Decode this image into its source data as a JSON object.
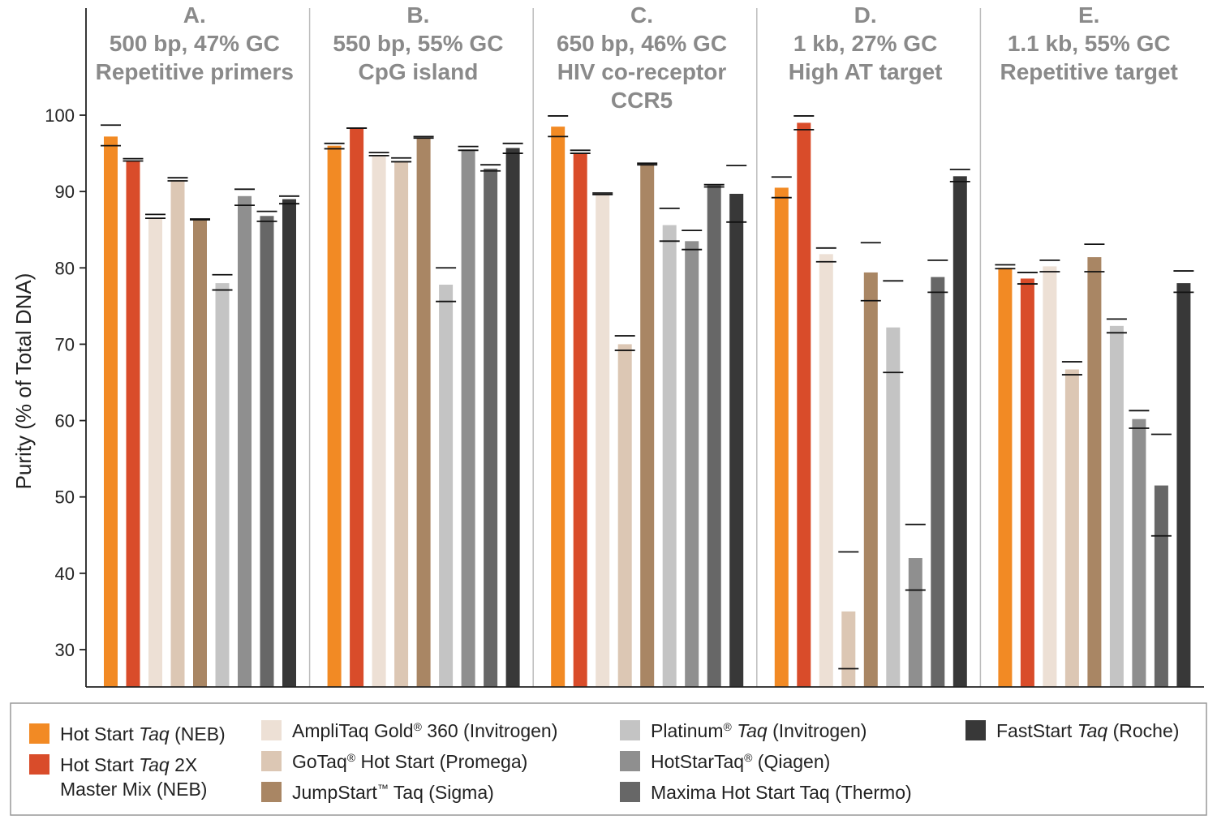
{
  "chart_data": {
    "type": "bar",
    "title": "",
    "xlabel": "",
    "ylabel": "Purity (% of Total DNA)",
    "ylim": [
      25,
      113
    ],
    "yticks": [
      30,
      40,
      50,
      60,
      70,
      80,
      90,
      100
    ],
    "legend_placement": "bottom",
    "panels": [
      {
        "letter": "A.",
        "lines": [
          "500 bp, 47% GC",
          "Repetitive primers"
        ]
      },
      {
        "letter": "B.",
        "lines": [
          "550 bp, 55% GC",
          "CpG island"
        ]
      },
      {
        "letter": "C.",
        "lines": [
          "650 bp, 46% GC",
          "HIV co-receptor",
          "CCR5"
        ]
      },
      {
        "letter": "D.",
        "lines": [
          "1 kb, 27% GC",
          "High AT target"
        ]
      },
      {
        "letter": "E.",
        "lines": [
          "1.1 kb, 55% GC",
          "Repetitive target"
        ]
      }
    ],
    "series": [
      {
        "label": [
          {
            "t": "Hot Start "
          },
          {
            "t": "Taq",
            "i": true
          },
          {
            "t": " (NEB)"
          }
        ],
        "color": "#f28a24",
        "values": [
          97.2,
          96.0,
          98.5,
          90.5,
          80.0
        ],
        "err_low": [
          96.0,
          95.6,
          97.2,
          89.2,
          79.9
        ],
        "err_high": [
          98.7,
          96.3,
          99.9,
          91.9,
          80.4
        ]
      },
      {
        "label": [
          {
            "t": "Hot Start "
          },
          {
            "t": "Taq",
            "i": true
          },
          {
            "t": " 2X"
          }
        ],
        "label2": [
          {
            "t": "Master Mix (NEB)"
          }
        ],
        "color": "#d94c2a",
        "values": [
          94.0,
          98.3,
          95.0,
          99.0,
          78.6
        ],
        "err_low": [
          94.0,
          98.3,
          95.0,
          98.1,
          77.9
        ],
        "err_high": [
          94.3,
          98.3,
          95.4,
          99.9,
          79.4
        ]
      },
      {
        "label": [
          {
            "t": "AmpliTaq Gold"
          },
          {
            "t": "®",
            "sup": true
          },
          {
            "t": " 360 (Invitrogen)"
          }
        ],
        "color": "#ede0d5",
        "values": [
          86.5,
          94.8,
          89.6,
          81.8,
          80.2
        ],
        "err_low": [
          86.5,
          94.7,
          89.6,
          80.8,
          79.5
        ],
        "err_high": [
          87.0,
          95.1,
          89.8,
          82.6,
          81.0
        ]
      },
      {
        "label": [
          {
            "t": "GoTaq"
          },
          {
            "t": "®",
            "sup": true
          },
          {
            "t": " Hot Start (Promega)"
          }
        ],
        "color": "#dcc7b4",
        "values": [
          91.5,
          94.0,
          70.0,
          35.0,
          66.7
        ],
        "err_low": [
          91.4,
          93.9,
          69.2,
          27.5,
          66.0
        ],
        "err_high": [
          91.8,
          94.4,
          71.1,
          42.8,
          67.7
        ]
      },
      {
        "label": [
          {
            "t": "JumpStart"
          },
          {
            "t": "™",
            "sup": true
          },
          {
            "t": " Taq (Sigma)"
          }
        ],
        "color": "#a98664",
        "values": [
          86.3,
          97.0,
          93.6,
          79.4,
          81.4
        ],
        "err_low": [
          86.3,
          97.0,
          93.5,
          75.7,
          79.5
        ],
        "err_high": [
          86.4,
          97.2,
          93.7,
          83.3,
          83.1
        ]
      },
      {
        "label": [
          {
            "t": "Platinum"
          },
          {
            "t": "®",
            "sup": true
          },
          {
            "t": " "
          },
          {
            "t": "Taq",
            "i": true
          },
          {
            "t": " (Invitrogen)"
          }
        ],
        "color": "#c4c4c4",
        "values": [
          78.0,
          77.8,
          85.6,
          72.2,
          72.4
        ],
        "err_low": [
          77.1,
          75.6,
          83.5,
          66.3,
          71.5
        ],
        "err_high": [
          79.1,
          80.0,
          87.8,
          78.3,
          73.3
        ]
      },
      {
        "label": [
          {
            "t": "HotStarTaq"
          },
          {
            "t": "®",
            "sup": true
          },
          {
            "t": " (Qiagen)"
          }
        ],
        "color": "#8f8f8f",
        "values": [
          89.4,
          95.5,
          83.5,
          42.0,
          60.2
        ],
        "err_low": [
          88.2,
          95.4,
          82.4,
          37.8,
          59.0
        ],
        "err_high": [
          90.3,
          95.9,
          84.9,
          46.4,
          61.3
        ]
      },
      {
        "label": [
          {
            "t": "Maxima Hot Start Taq (Thermo)"
          }
        ],
        "color": "#676767",
        "values": [
          86.8,
          93.0,
          90.8,
          78.8,
          51.5
        ],
        "err_low": [
          86.1,
          92.7,
          90.6,
          76.8,
          44.9
        ],
        "err_high": [
          87.4,
          93.5,
          90.9,
          81.0,
          58.2
        ]
      },
      {
        "label": [
          {
            "t": "FastStart "
          },
          {
            "t": "Taq",
            "i": true
          },
          {
            "t": " (Roche)"
          }
        ],
        "color": "#383838",
        "values": [
          89.0,
          95.7,
          89.7,
          92.0,
          78.0
        ],
        "err_low": [
          88.4,
          95.0,
          86.0,
          91.3,
          76.8
        ],
        "err_high": [
          89.4,
          96.3,
          93.4,
          92.9,
          79.6
        ]
      }
    ]
  }
}
